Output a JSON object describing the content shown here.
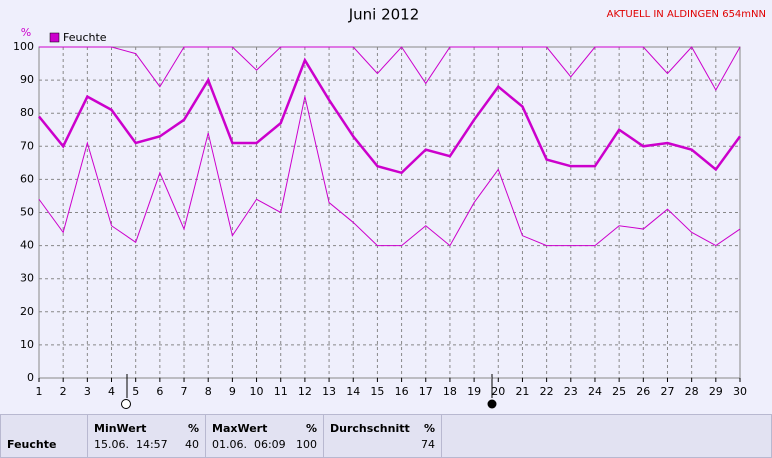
{
  "chart_data": {
    "type": "line",
    "title": "Juni 2012",
    "subtitle": "AKTUELL IN ALDINGEN 654mNN",
    "y_label": "%",
    "categories": [
      "1",
      "2",
      "3",
      "4",
      "5",
      "6",
      "7",
      "8",
      "9",
      "10",
      "11",
      "12",
      "13",
      "14",
      "15",
      "16",
      "17",
      "18",
      "19",
      "20",
      "21",
      "22",
      "23",
      "24",
      "25",
      "26",
      "27",
      "28",
      "29",
      "30"
    ],
    "series": [
      {
        "name": "Feuchte",
        "color": "#cc00cc",
        "width": 2.5,
        "values": [
          79,
          70,
          85,
          81,
          71,
          73,
          78,
          90,
          71,
          71,
          77,
          96,
          84,
          73,
          64,
          62,
          69,
          67,
          78,
          88,
          82,
          66,
          64,
          64,
          75,
          70,
          71,
          69,
          63,
          73
        ]
      },
      {
        "color": "#cc00cc",
        "width": 1,
        "values": [
          100,
          100,
          100,
          100,
          98,
          88,
          100,
          100,
          100,
          93,
          100,
          100,
          100,
          100,
          92,
          100,
          89,
          100,
          100,
          100,
          100,
          100,
          91,
          100,
          100,
          100,
          92,
          100,
          87,
          100
        ]
      },
      {
        "color": "#cc00cc",
        "width": 1,
        "values": [
          54,
          44,
          71,
          46,
          41,
          62,
          45,
          74,
          43,
          54,
          50,
          85,
          53,
          47,
          40,
          40,
          46,
          40,
          53,
          63,
          43,
          40,
          40,
          40,
          46,
          45,
          51,
          44,
          40,
          45
        ]
      }
    ],
    "ylim": [
      0,
      100
    ],
    "yticks": [
      0,
      10,
      20,
      30,
      40,
      50,
      60,
      70,
      80,
      90,
      100
    ],
    "grid": true
  },
  "table": {
    "row_label": "Feuchte",
    "min": {
      "header": "MinWert",
      "unit": "%",
      "time": "15.06.  14:57",
      "value": "40"
    },
    "max": {
      "header": "MaxWert",
      "unit": "%",
      "time": "01.06.  06:09",
      "value": "100"
    },
    "avg": {
      "header": "Durchschnitt",
      "unit": "%",
      "value": "74"
    }
  }
}
